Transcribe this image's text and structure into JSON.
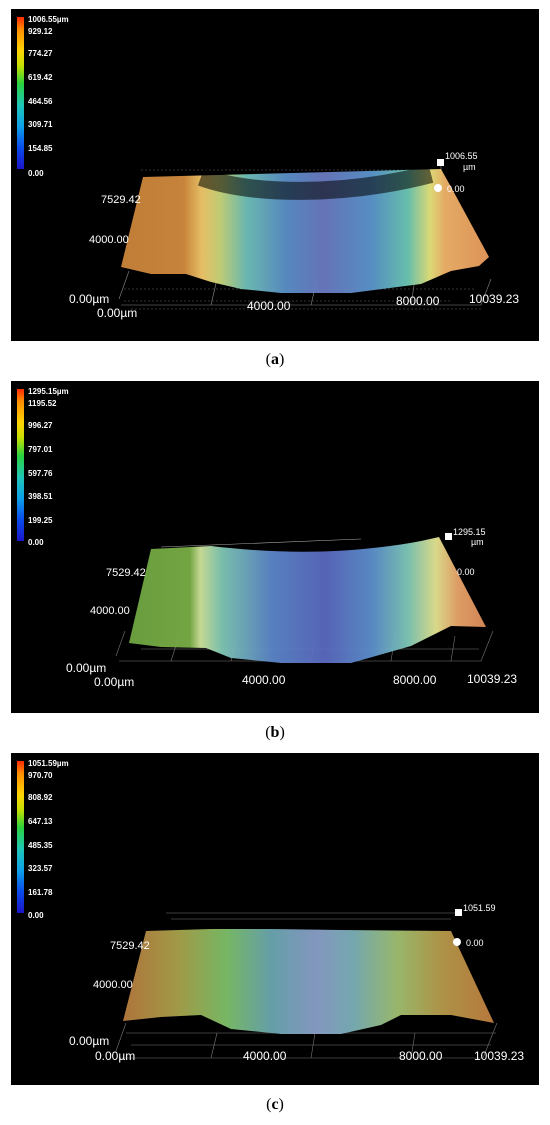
{
  "panels": [
    {
      "caption_letter": "a",
      "legend_ticks": [
        "1006.55µm",
        "929.12",
        "774.27",
        "619.42",
        "464.56",
        "309.71",
        "154.85",
        "0.00"
      ],
      "z_max": "1006.55",
      "z_unit": "µm",
      "z_zero": "0.00",
      "y_label": "7529.42",
      "y_mid": "4000.00",
      "origin_y": "0.00µm",
      "origin_x": "0.00µm",
      "x_mid": "4000.00",
      "x_8000": "8000.00",
      "x_max": "10039.23"
    },
    {
      "caption_letter": "b",
      "legend_ticks": [
        "1295.15µm",
        "1195.52",
        "996.27",
        "797.01",
        "597.76",
        "398.51",
        "199.25",
        "0.00"
      ],
      "z_max": "1295.15",
      "z_unit": "µm",
      "z_zero": "0.00",
      "y_label": "7529.42",
      "y_mid": "4000.00",
      "origin_y": "0.00µm",
      "origin_x": "0.00µm",
      "x_mid": "4000.00",
      "x_8000": "8000.00",
      "x_max": "10039.23"
    },
    {
      "caption_letter": "c",
      "legend_ticks": [
        "1051.59µm",
        "970.70",
        "808.92",
        "647.13",
        "485.35",
        "323.57",
        "161.78",
        "0.00"
      ],
      "z_max": "1051.59",
      "z_unit": "",
      "z_zero": "0.00",
      "y_label": "7529.42",
      "y_mid": "4000.00",
      "origin_y": "0.00µm",
      "origin_x": "0.00µm",
      "x_mid": "4000.00",
      "x_8000": "8000.00",
      "x_max": "10039.23"
    }
  ]
}
